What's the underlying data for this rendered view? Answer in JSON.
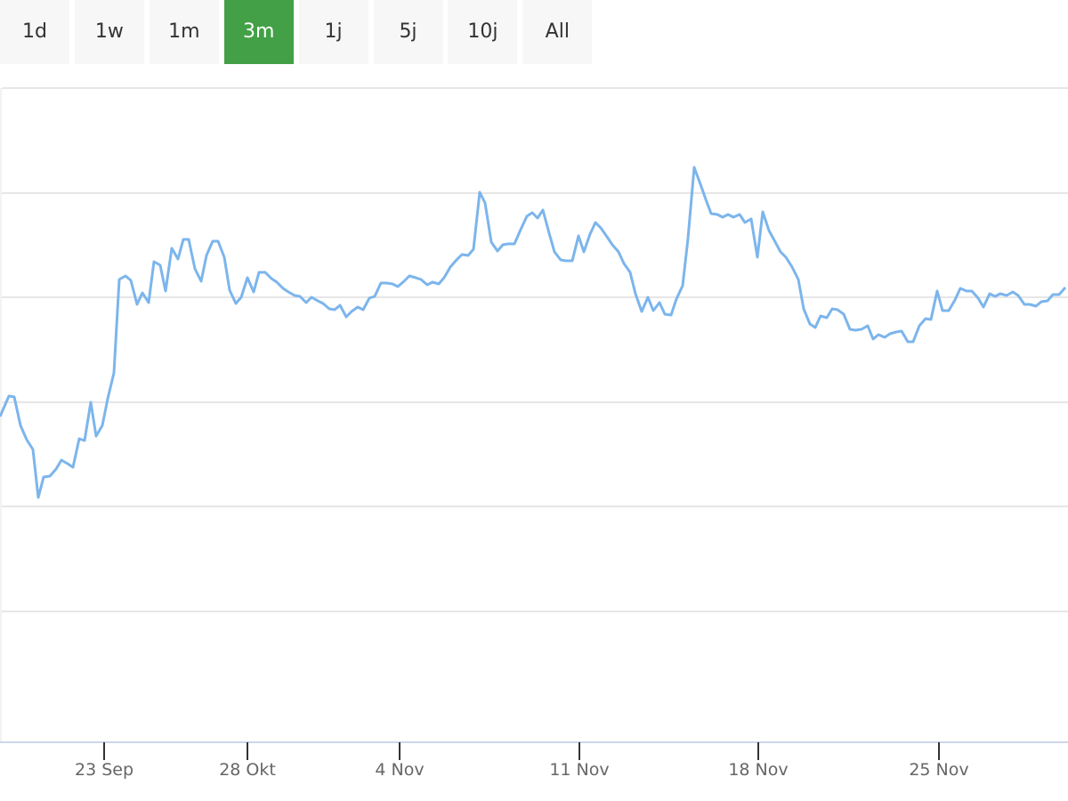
{
  "range_buttons": {
    "labels": [
      "1d",
      "1w",
      "1m",
      "3m",
      "1j",
      "5j",
      "10j",
      "All"
    ],
    "active_index": 3,
    "active_color": "#43a047"
  },
  "chart_data": {
    "type": "line",
    "color": "#7cb5ec",
    "grid": true,
    "xlim": [
      0,
      1200
    ],
    "ylim": [
      0,
      735
    ],
    "xticks": [
      {
        "value": 117,
        "label": "23 Sep"
      },
      {
        "value": 278,
        "label": "28 Okt"
      },
      {
        "value": 449,
        "label": "4 Nov"
      },
      {
        "value": 651,
        "label": "11 Nov"
      },
      {
        "value": 852,
        "label": "18 Nov"
      },
      {
        "value": 1055,
        "label": "25 Nov"
      }
    ],
    "yticks": [
      147,
      265,
      382,
      500,
      617,
      735
    ],
    "x": [
      0,
      10,
      16,
      23,
      30,
      37,
      43,
      49,
      56,
      63,
      69,
      76,
      82,
      89,
      95,
      102,
      108,
      115,
      121,
      128,
      134,
      141,
      147,
      154,
      160,
      167,
      173,
      180,
      186,
      193,
      200,
      206,
      212,
      219,
      226,
      232,
      239,
      245,
      252,
      258,
      265,
      271,
      278,
      285,
      291,
      298,
      305,
      311,
      318,
      324,
      331,
      337,
      344,
      350,
      357,
      363,
      370,
      376,
      382,
      389,
      395,
      402,
      408,
      415,
      421,
      428,
      434,
      441,
      447,
      454,
      460,
      467,
      473,
      480,
      486,
      493,
      499,
      506,
      513,
      519,
      526,
      532,
      539,
      545,
      552,
      559,
      565,
      571,
      578,
      585,
      592,
      598,
      604,
      610,
      617,
      623,
      630,
      636,
      643,
      650,
      656,
      663,
      669,
      675,
      682,
      688,
      695,
      701,
      708,
      714,
      721,
      728,
      734,
      741,
      747,
      754,
      760,
      767,
      773,
      780,
      787,
      793,
      799,
      806,
      812,
      818,
      824,
      831,
      837,
      844,
      851,
      857,
      864,
      870,
      877,
      883,
      890,
      897,
      903,
      910,
      916,
      922,
      929,
      935,
      941,
      948,
      955,
      961,
      968,
      975,
      981,
      987,
      994,
      1000,
      1007,
      1013,
      1020,
      1026,
      1033,
      1040,
      1046,
      1053,
      1059,
      1066,
      1073,
      1079,
      1086,
      1092,
      1099,
      1105,
      1112,
      1118,
      1124,
      1131,
      1138,
      1144,
      1151,
      1157,
      1164,
      1170,
      1177,
      1183,
      1190,
      1197
    ],
    "values": [
      366,
      389,
      388,
      356,
      340,
      329,
      275,
      298,
      299,
      307,
      317,
      313,
      309,
      341,
      339,
      382,
      344,
      356,
      386,
      415,
      520,
      524,
      519,
      492,
      505,
      494,
      540,
      536,
      507,
      555,
      543,
      565,
      565,
      532,
      518,
      547,
      563,
      563,
      545,
      508,
      493,
      500,
      522,
      506,
      528,
      528,
      521,
      517,
      510,
      506,
      502,
      501,
      494,
      500,
      496,
      493,
      487,
      486,
      491,
      478,
      484,
      489,
      486,
      499,
      501,
      516,
      516,
      515,
      512,
      518,
      524,
      522,
      520,
      514,
      517,
      515,
      522,
      534,
      542,
      548,
      547,
      554,
      618,
      606,
      562,
      552,
      559,
      560,
      560,
      576,
      591,
      595,
      589,
      598,
      572,
      551,
      542,
      541,
      541,
      569,
      551,
      571,
      584,
      578,
      568,
      559,
      551,
      538,
      528,
      504,
      484,
      500,
      485,
      494,
      481,
      480,
      498,
      513,
      566,
      646,
      627,
      610,
      594,
      593,
      590,
      593,
      590,
      593,
      584,
      588,
      545,
      596,
      575,
      564,
      551,
      545,
      534,
      520,
      487,
      470,
      466,
      479,
      477,
      487,
      486,
      481,
      464,
      463,
      464,
      468,
      453,
      458,
      455,
      459,
      461,
      462,
      450,
      450,
      468,
      476,
      475,
      507,
      485,
      485,
      497,
      510,
      507,
      507,
      499,
      489,
      504,
      501,
      504,
      502,
      506,
      502,
      492,
      492,
      490,
      495,
      496,
      503,
      503,
      511
    ]
  }
}
